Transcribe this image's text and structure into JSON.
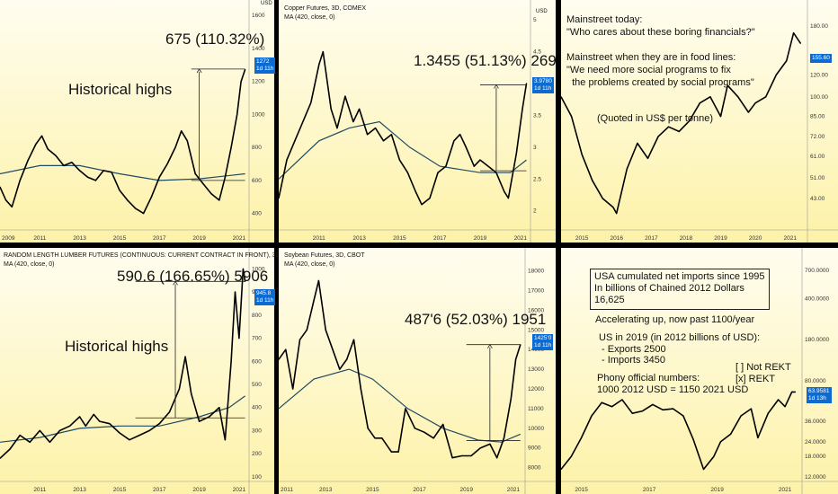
{
  "colors": {
    "bg_top": "#fffdf0",
    "bg_bottom": "#fdf2a8",
    "price": "#000000",
    "ma": "#1e4a63",
    "badge": "#0b6bd3",
    "divider": "#000000"
  },
  "chart_data": [
    {
      "type": "line",
      "id": "p1",
      "title": "",
      "ma_label": "",
      "annotation_top": "675 (110.32%)",
      "annotation_mid": "Historical highs",
      "badge_value": "1272",
      "badge_time": "1d 11h",
      "price_axis_unit": "USD",
      "xlim": [
        2009,
        2021.5
      ],
      "ylim": [
        300,
        1650
      ],
      "log": false,
      "x_ticks": [
        2009,
        2011,
        2013,
        2015,
        2017,
        2019,
        2021
      ],
      "y_ticks": [
        400,
        600,
        800,
        1000,
        1200,
        1400,
        1600
      ],
      "x": [
        2009.0,
        2009.3,
        2009.6,
        2010.0,
        2010.4,
        2010.8,
        2011.1,
        2011.4,
        2011.8,
        2012.2,
        2012.6,
        2013.0,
        2013.4,
        2013.8,
        2014.2,
        2014.6,
        2015.0,
        2015.4,
        2015.8,
        2016.2,
        2016.6,
        2017.0,
        2017.4,
        2017.8,
        2018.1,
        2018.4,
        2018.8,
        2019.2,
        2019.6,
        2020.0,
        2020.3,
        2020.6,
        2020.9,
        2021.1,
        2021.3
      ],
      "y": [
        560,
        480,
        440,
        600,
        720,
        820,
        870,
        790,
        750,
        690,
        710,
        660,
        620,
        600,
        660,
        650,
        540,
        480,
        430,
        400,
        500,
        620,
        700,
        800,
        900,
        840,
        640,
        580,
        520,
        480,
        620,
        800,
        1000,
        1200,
        1272
      ],
      "ma_x": [
        2009.0,
        2011.0,
        2013.0,
        2015.0,
        2017.0,
        2019.0,
        2021.3
      ],
      "ma_y": [
        640,
        690,
        690,
        640,
        600,
        610,
        640
      ],
      "measure": {
        "x": 2019.0,
        "y_from": 600,
        "y_to": 1275,
        "hline_from": 2018.6,
        "hline_to": 2021.3
      }
    },
    {
      "type": "line",
      "id": "p2",
      "title": "Copper Futures, 3D, COMEX",
      "ma_label": "MA (420, close, 0)",
      "annotation_top": "1.3455 (51.13%) 269",
      "annotation_mid": "",
      "badge_value": "3.9780",
      "badge_time": "1d 11h",
      "price_axis_unit": "USD",
      "xlim": [
        2009,
        2021.5
      ],
      "ylim": [
        1.7,
        5.2
      ],
      "log": false,
      "x_ticks": [
        2011,
        2013,
        2015,
        2017,
        2019,
        2021
      ],
      "y_ticks": [
        2.0,
        2.5,
        3.0,
        3.5,
        4.0,
        4.5,
        5.0
      ],
      "x": [
        2009.0,
        2009.4,
        2009.8,
        2010.2,
        2010.6,
        2011.0,
        2011.2,
        2011.6,
        2011.9,
        2012.3,
        2012.7,
        2013.0,
        2013.4,
        2013.8,
        2014.2,
        2014.6,
        2015.0,
        2015.4,
        2015.8,
        2016.1,
        2016.5,
        2016.9,
        2017.3,
        2017.7,
        2018.0,
        2018.3,
        2018.7,
        2019.0,
        2019.4,
        2019.8,
        2020.2,
        2020.4,
        2020.8,
        2021.1,
        2021.3
      ],
      "y": [
        2.2,
        2.8,
        3.1,
        3.4,
        3.7,
        4.3,
        4.5,
        3.6,
        3.3,
        3.8,
        3.4,
        3.6,
        3.2,
        3.3,
        3.1,
        3.2,
        2.8,
        2.6,
        2.3,
        2.1,
        2.2,
        2.6,
        2.7,
        3.1,
        3.2,
        3.0,
        2.7,
        2.8,
        2.7,
        2.6,
        2.3,
        2.2,
        2.9,
        3.6,
        4.0
      ],
      "ma_x": [
        2009.0,
        2011.0,
        2012.5,
        2014.0,
        2015.5,
        2017.0,
        2019.0,
        2020.5,
        2021.3
      ],
      "ma_y": [
        2.5,
        3.1,
        3.3,
        3.4,
        3.0,
        2.7,
        2.6,
        2.6,
        2.8
      ],
      "measure": {
        "x": 2019.8,
        "y_from": 2.63,
        "y_to": 3.98,
        "hline_from": 2019.0,
        "hline_to": 2021.3
      }
    },
    {
      "type": "line",
      "id": "p3",
      "title": "",
      "ma_label": "",
      "annotation_top": "",
      "annotation_mid": "",
      "badge_value": "155.60",
      "badge_time": "",
      "price_axis_unit": "",
      "xlim": [
        2014.4,
        2021.5
      ],
      "ylim": [
        3.5,
        5.35
      ],
      "log": true,
      "x_ticks": [
        2015,
        2016,
        2017,
        2018,
        2019,
        2020,
        2021
      ],
      "y_tick_labels": [
        "43.00",
        "51.00",
        "61.00",
        "72.00",
        "85.00",
        "100.00",
        "120.00",
        "140.00",
        "180.00"
      ],
      "y_tick_values": [
        43,
        51,
        61,
        72,
        85,
        100,
        120,
        140,
        180
      ],
      "x": [
        2014.4,
        2014.7,
        2015.0,
        2015.3,
        2015.6,
        2015.9,
        2016.0,
        2016.3,
        2016.6,
        2016.9,
        2017.2,
        2017.5,
        2017.8,
        2018.1,
        2018.4,
        2018.7,
        2019.0,
        2019.2,
        2019.5,
        2019.8,
        2020.0,
        2020.3,
        2020.6,
        2020.9,
        2021.1,
        2021.3
      ],
      "y": [
        100,
        85,
        62,
        50,
        43,
        40,
        38,
        55,
        68,
        60,
        72,
        78,
        75,
        82,
        95,
        100,
        85,
        110,
        100,
        88,
        95,
        100,
        120,
        135,
        170,
        156
      ],
      "ma_x": [],
      "ma_y": [],
      "measure": null
    },
    {
      "type": "line",
      "id": "p4",
      "title": "RANDOM LENGTH LUMBER FUTURES (CONTINUOUS: CURRENT CONTRACT IN FRONT), 3D, CME",
      "ma_label": "MA (420, close, 0)",
      "annotation_top": "590.6 (166.65%) 5906",
      "annotation_mid": "Historical highs",
      "badge_value": "945.8",
      "badge_time": "1d 11h",
      "price_axis_unit": "",
      "xlim": [
        2009,
        2021.5
      ],
      "ylim": [
        80,
        1060
      ],
      "log": false,
      "x_ticks": [
        2011,
        2013,
        2015,
        2017,
        2019,
        2021
      ],
      "y_ticks": [
        100,
        200,
        300,
        400,
        500,
        600,
        700,
        800,
        900,
        1000
      ],
      "x": [
        2009.0,
        2009.5,
        2010.0,
        2010.5,
        2011.0,
        2011.5,
        2012.0,
        2012.5,
        2013.0,
        2013.3,
        2013.7,
        2014.0,
        2014.5,
        2015.0,
        2015.5,
        2016.0,
        2016.5,
        2017.0,
        2017.5,
        2018.0,
        2018.3,
        2018.6,
        2019.0,
        2019.5,
        2020.0,
        2020.3,
        2020.6,
        2020.8,
        2021.0,
        2021.2,
        2021.3
      ],
      "y": [
        180,
        220,
        280,
        250,
        300,
        250,
        300,
        320,
        360,
        320,
        370,
        340,
        330,
        290,
        260,
        280,
        300,
        330,
        380,
        480,
        620,
        460,
        340,
        360,
        400,
        260,
        600,
        900,
        700,
        1000,
        946
      ],
      "ma_x": [
        2009.0,
        2011.0,
        2013.0,
        2015.0,
        2017.0,
        2019.0,
        2020.5,
        2021.3
      ],
      "ma_y": [
        250,
        270,
        310,
        320,
        320,
        360,
        400,
        450
      ],
      "measure": {
        "x": 2017.8,
        "y_from": 355,
        "y_to": 946,
        "hline_from": 2015.8,
        "hline_to": 2021.3
      }
    },
    {
      "type": "line",
      "id": "p5",
      "title": "Soybean Futures, 3D, CBOT",
      "ma_label": "MA (420, close, 0)",
      "annotation_top": "487'6 (52.03%) 1951",
      "annotation_mid": "",
      "badge_value": "1425'0",
      "badge_time": "1d 11h",
      "price_axis_unit": "",
      "xlim": [
        2011,
        2021.5
      ],
      "ylim": [
        7300,
        18800
      ],
      "log": false,
      "x_ticks": [
        2011,
        2013,
        2015,
        2017,
        2019,
        2021
      ],
      "y_ticks": [
        8000,
        9000,
        10000,
        11000,
        12000,
        13000,
        14000,
        15000,
        16000,
        17000,
        18000
      ],
      "x": [
        2011.0,
        2011.3,
        2011.6,
        2011.9,
        2012.2,
        2012.5,
        2012.7,
        2013.0,
        2013.3,
        2013.6,
        2013.9,
        2014.2,
        2014.5,
        2014.8,
        2015.1,
        2015.4,
        2015.8,
        2016.1,
        2016.4,
        2016.8,
        2017.2,
        2017.6,
        2018.0,
        2018.4,
        2018.8,
        2019.2,
        2019.6,
        2020.0,
        2020.3,
        2020.6,
        2020.9,
        2021.1,
        2021.3
      ],
      "y": [
        13500,
        14000,
        12000,
        14500,
        15000,
        16500,
        17500,
        15000,
        14000,
        13000,
        13500,
        14500,
        12000,
        10000,
        9500,
        9500,
        8800,
        8800,
        11000,
        10000,
        9800,
        9500,
        10200,
        8500,
        8600,
        8600,
        9000,
        9200,
        8500,
        9500,
        11500,
        13500,
        14250
      ],
      "ma_x": [
        2011.0,
        2012.5,
        2014.0,
        2015.0,
        2016.5,
        2018.0,
        2019.5,
        2020.5,
        2021.3
      ],
      "ma_y": [
        11000,
        12500,
        13000,
        12500,
        11000,
        10000,
        9400,
        9300,
        9700
      ],
      "measure": {
        "x": 2020.0,
        "y_from": 9380,
        "y_to": 14250,
        "hline_from": 2019.0,
        "hline_to": 2021.3
      }
    },
    {
      "type": "line",
      "id": "p6",
      "title": "",
      "ma_label": "",
      "annotation_top": "",
      "annotation_mid": "",
      "badge_value": "63.9581",
      "badge_time": "1d 13h",
      "price_axis_unit": "",
      "xlim": [
        2014.4,
        2021.5
      ],
      "ylim": [
        2.4,
        6.85
      ],
      "log": true,
      "x_ticks": [
        2015,
        2017,
        2019,
        2021
      ],
      "y_tick_labels": [
        "12.0000",
        "18.0000",
        "24.0000",
        "36.0000",
        "80.0000",
        "180.0000",
        "400.0000",
        "700.0000"
      ],
      "y_tick_values": [
        12,
        18,
        24,
        36,
        80,
        180,
        400,
        700
      ],
      "x": [
        2014.4,
        2014.7,
        2015.0,
        2015.3,
        2015.6,
        2015.9,
        2016.2,
        2016.5,
        2016.8,
        2017.1,
        2017.4,
        2017.7,
        2018.0,
        2018.3,
        2018.6,
        2018.9,
        2019.1,
        2019.4,
        2019.7,
        2020.0,
        2020.2,
        2020.5,
        2020.8,
        2021.0,
        2021.2,
        2021.3
      ],
      "y": [
        14,
        18,
        26,
        40,
        52,
        48,
        55,
        42,
        44,
        50,
        45,
        46,
        40,
        25,
        14,
        18,
        24,
        28,
        40,
        46,
        26,
        42,
        55,
        48,
        64,
        64
      ],
      "ma_x": [],
      "ma_y": [],
      "measure": null
    }
  ],
  "notes": {
    "p3": {
      "line1": "Mainstreet today:",
      "line2": "\"Who cares about these boring financials?\"",
      "line3": "Mainstreet when they are in food lines:",
      "line4": "\"We need more social programs to fix",
      "line5": "  the problems created by social programs\"",
      "line6": "(Quoted in US$ per tonne)"
    },
    "p6": {
      "box": "USA cumulated net imports since 1995\nIn billions of Chained 2012 Dollars\n16,625",
      "accel": "Accelerating up, now past 1100/year",
      "us2019": "US in 2019 (in 2012 billions of USD):\n - Exports 2500\n - Imports 3450",
      "phony": "Phony official numbers:\n1000 2012 USD = 1150 2021 USD",
      "rekt": "[ ] Not REKT\n[x] REKT"
    }
  }
}
